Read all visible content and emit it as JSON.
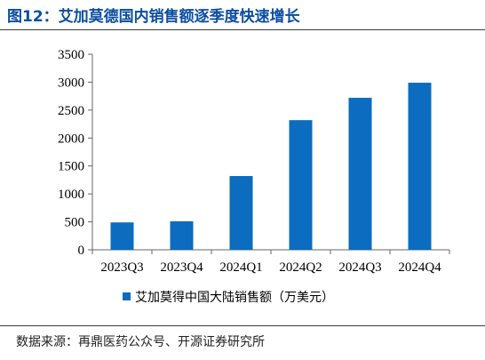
{
  "figure": {
    "title": "图12：艾加莫德国内销售额逐季度快速增长",
    "source": "数据来源：再鼎医药公众号、开源证券研究所"
  },
  "colors": {
    "title": "#0b4ea2",
    "bar": "#0b6cc0"
  },
  "chart_data": {
    "type": "bar",
    "categories": [
      "2023Q3",
      "2023Q4",
      "2024Q1",
      "2024Q2",
      "2024Q3",
      "2024Q4"
    ],
    "series": [
      {
        "name": "艾加莫得中国大陆销售额（万美元）",
        "values": [
          490,
          510,
          1320,
          2320,
          2720,
          2990
        ]
      }
    ],
    "ylim": [
      0,
      3500
    ],
    "yticks": [
      0,
      500,
      1000,
      1500,
      2000,
      2500,
      3000,
      3500
    ],
    "grid": false,
    "legend": "bottom"
  }
}
